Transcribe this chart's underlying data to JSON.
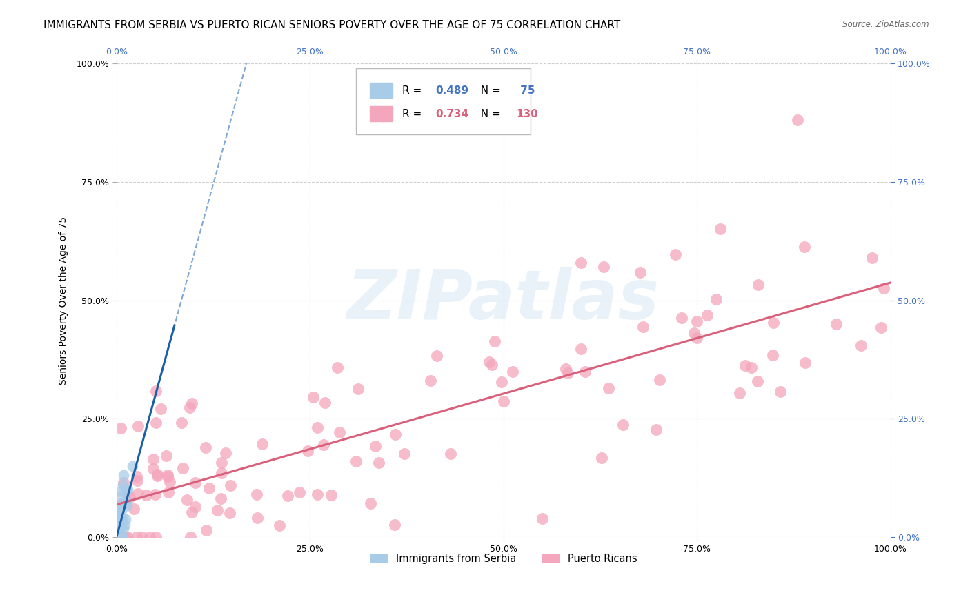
{
  "title": "IMMIGRANTS FROM SERBIA VS PUERTO RICAN SENIORS POVERTY OVER THE AGE OF 75 CORRELATION CHART",
  "source": "Source: ZipAtlas.com",
  "ylabel": "Seniors Poverty Over the Age of 75",
  "xlim": [
    0,
    1.0
  ],
  "ylim": [
    0,
    1.0
  ],
  "xticks": [
    0.0,
    0.25,
    0.5,
    0.75,
    1.0
  ],
  "yticks": [
    0.0,
    0.25,
    0.5,
    0.75,
    1.0
  ],
  "xticklabels_left": [
    "0.0%",
    "25.0%",
    "50.0%",
    "75.0%",
    "100.0%"
  ],
  "yticklabels_left": [
    "0.0%",
    "25.0%",
    "50.0%",
    "75.0%",
    "100.0%"
  ],
  "yticklabels_right": [
    "0.0%",
    "25.0%",
    "50.0%",
    "75.0%",
    "100.0%"
  ],
  "xticklabels_top": [
    "0.0%",
    "25.0%",
    "50.0%",
    "75.0%",
    "100.0%"
  ],
  "serbia_dot_color": "#a8cce8",
  "pr_dot_color": "#f4a6bc",
  "serbia_line_color": "#1a5fa8",
  "pr_line_color": "#d95f7a",
  "serbia_R": 0.489,
  "serbia_N": 75,
  "pr_R": 0.734,
  "pr_N": 130,
  "legend_R_color_serbia": "#4472c4",
  "legend_R_color_pr": "#d95f7a",
  "watermark_text": "ZIPatlas",
  "watermark_color": "#c8dff0",
  "background_color": "#ffffff",
  "grid_color": "#d0d0d0",
  "title_fontsize": 11,
  "axis_label_fontsize": 10,
  "tick_fontsize": 9,
  "right_tick_color": "#4472c4",
  "serbia_line_slope": 7.5,
  "serbia_line_intercept": -0.02,
  "pr_line_slope": 0.47,
  "pr_line_intercept": 0.05
}
